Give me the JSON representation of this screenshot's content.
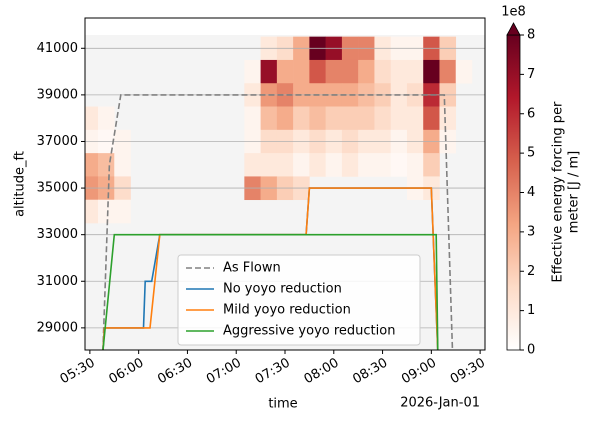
{
  "chart_data": {
    "type": "line",
    "xlabel": "time",
    "ylabel": "altitude_ft",
    "x_offset_label": "2026-Jan-01",
    "xlim": [
      "05:27",
      "09:33"
    ],
    "xticks": [
      "05:30",
      "06:00",
      "06:30",
      "07:00",
      "07:30",
      "08:00",
      "08:30",
      "09:00",
      "09:30"
    ],
    "ylim": [
      28050,
      42300
    ],
    "yticks": [
      29000,
      31000,
      33000,
      35000,
      37000,
      39000,
      41000
    ],
    "grid": true,
    "legend": "lower center",
    "series": [
      {
        "name": "As Flown",
        "color": "#808080",
        "dashed": true,
        "x": [
          "05:38",
          "05:42",
          "05:49",
          "09:08",
          "09:13"
        ],
        "values": [
          28000,
          36000,
          39000,
          39000,
          28000
        ]
      },
      {
        "name": "No yoyo reduction",
        "color": "#1f77b4",
        "x": [
          "05:38",
          "05:39",
          "06:03",
          "06:04",
          "06:08",
          "06:13",
          "07:43",
          "07:45",
          "09:00",
          "09:04"
        ],
        "values": [
          28000,
          29000,
          29000,
          31000,
          31000,
          33000,
          33000,
          35000,
          35000,
          28000
        ]
      },
      {
        "name": "Mild yoyo reduction",
        "color": "#ff7f0e",
        "x": [
          "05:38",
          "05:39",
          "06:07",
          "06:13",
          "07:43",
          "07:45",
          "09:00",
          "09:04"
        ],
        "values": [
          28000,
          29000,
          29000,
          33000,
          33000,
          35000,
          35000,
          28000
        ]
      },
      {
        "name": "Aggressive yoyo reduction",
        "color": "#2ca02c",
        "x": [
          "05:38",
          "05:45",
          "09:03",
          "09:04"
        ],
        "values": [
          28000,
          33000,
          33000,
          28000
        ]
      }
    ],
    "heatmap": {
      "x_edges": [
        "05:25",
        "05:35",
        "05:45",
        "05:55",
        "06:05",
        "06:15",
        "06:25",
        "06:35",
        "06:45",
        "06:55",
        "07:05",
        "07:15",
        "07:25",
        "07:35",
        "07:45",
        "07:55",
        "08:05",
        "08:15",
        "08:25",
        "08:35",
        "08:45",
        "08:55",
        "09:05",
        "09:15",
        "09:25",
        "09:35"
      ],
      "y_centers": [
        41000,
        40000,
        39000,
        38000,
        37000,
        36000,
        35000,
        34000
      ],
      "values": [
        [
          null,
          null,
          null,
          null,
          null,
          null,
          null,
          null,
          null,
          null,
          null,
          1,
          1.5,
          3,
          8,
          7,
          4,
          4,
          1,
          0.5,
          0.5,
          5,
          2,
          null,
          null
        ],
        [
          null,
          null,
          null,
          null,
          null,
          null,
          null,
          null,
          null,
          null,
          0.5,
          7,
          3,
          3,
          5,
          4,
          4,
          3,
          1.5,
          1,
          1,
          8,
          4,
          0.5,
          null
        ],
        [
          null,
          null,
          null,
          null,
          null,
          null,
          null,
          null,
          null,
          null,
          1,
          3.5,
          4,
          3,
          3,
          3,
          3,
          2.5,
          2,
          1,
          1.5,
          6,
          2,
          null,
          null
        ],
        [
          1,
          0.5,
          null,
          null,
          null,
          null,
          null,
          null,
          null,
          null,
          0.5,
          2.5,
          3,
          2,
          2.5,
          2,
          2,
          2,
          1.5,
          1,
          1,
          5,
          1,
          null,
          null
        ],
        [
          0.5,
          0.3,
          0.5,
          null,
          null,
          null,
          null,
          null,
          null,
          null,
          0.5,
          1.5,
          1.5,
          1,
          1.5,
          1,
          1.5,
          1,
          1,
          0.5,
          1,
          3,
          0.5,
          null,
          null
        ],
        [
          3,
          2.5,
          0.5,
          null,
          null,
          null,
          null,
          null,
          null,
          null,
          1,
          1,
          1,
          0.5,
          1,
          0.5,
          1,
          0.5,
          0.5,
          0.3,
          0.5,
          2,
          null,
          null,
          null
        ],
        [
          3.5,
          3,
          1.5,
          null,
          null,
          null,
          null,
          null,
          null,
          null,
          4,
          3,
          2,
          1.5,
          null,
          null,
          null,
          null,
          null,
          null,
          0.5,
          1,
          null,
          null,
          null
        ],
        [
          1,
          0.5,
          0.5,
          null,
          null,
          null,
          null,
          null,
          null,
          null,
          null,
          null,
          null,
          null,
          null,
          null,
          null,
          null,
          null,
          null,
          null,
          null,
          null,
          null,
          null
        ]
      ]
    },
    "colorbar": {
      "label": [
        "Effective energy forcing per",
        "meter [J / m]"
      ],
      "exponent_label": "1e8",
      "lim": [
        0,
        8
      ],
      "ticks": [
        0,
        1,
        2,
        3,
        4,
        5,
        6,
        7,
        8
      ],
      "extend": "max",
      "colormap": [
        "#ffffff",
        "#fddbc7",
        "#f4a582",
        "#d6604d",
        "#b2182b",
        "#67001f"
      ]
    }
  }
}
